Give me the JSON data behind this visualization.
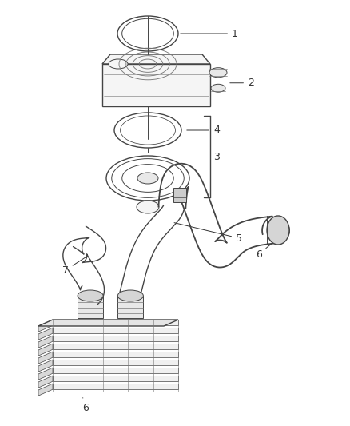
{
  "background_color": "#ffffff",
  "line_color": "#777777",
  "dark_line": "#444444",
  "fill_light": "#f5f5f5",
  "fill_mid": "#e8e8e8",
  "label_color": "#333333",
  "label_fontsize": 9,
  "fig_width": 4.38,
  "fig_height": 5.33,
  "dpi": 100
}
